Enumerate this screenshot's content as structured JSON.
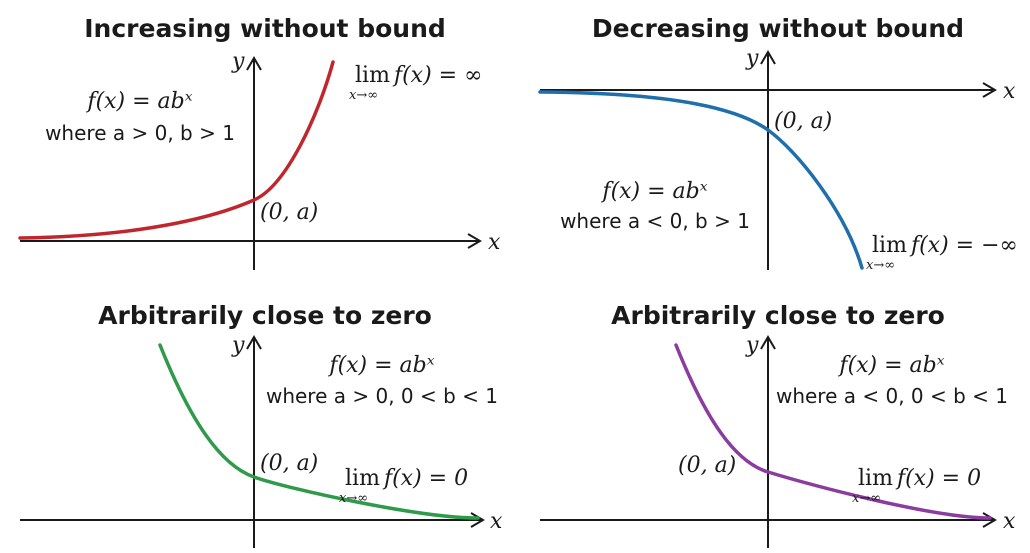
{
  "panels": [
    {
      "title": "Increasing without bound",
      "x_axis": "x",
      "y_axis": "y",
      "formula": "f(x) = abˣ",
      "condition": "where a > 0, b > 1",
      "point": "(0, a)",
      "limit": {
        "operator": "lim",
        "subscript": "x→∞",
        "expression": "f(x) = ∞"
      }
    },
    {
      "title": "Decreasing without bound",
      "x_axis": "x",
      "y_axis": "y",
      "formula": "f(x) = abˣ",
      "condition": "where a < 0, b > 1",
      "point": "(0, a)",
      "limit": {
        "operator": "lim",
        "subscript": "x→∞",
        "expression": "f(x) = −∞"
      }
    },
    {
      "title": "Arbitrarily close to zero",
      "x_axis": "x",
      "y_axis": "y",
      "formula": "f(x) = abˣ",
      "condition": "where a > 0, 0 < b < 1",
      "point": "(0, a)",
      "limit": {
        "operator": "lim",
        "subscript": "x→∞",
        "expression": "f(x) = 0"
      }
    },
    {
      "title": "Arbitrarily close to zero",
      "x_axis": "x",
      "y_axis": "y",
      "formula": "f(x) = abˣ",
      "condition": "where a < 0, 0 < b < 1",
      "point": "(0, a)",
      "limit": {
        "operator": "lim",
        "subscript": "x→∞",
        "expression": "f(x) = 0"
      }
    }
  ]
}
